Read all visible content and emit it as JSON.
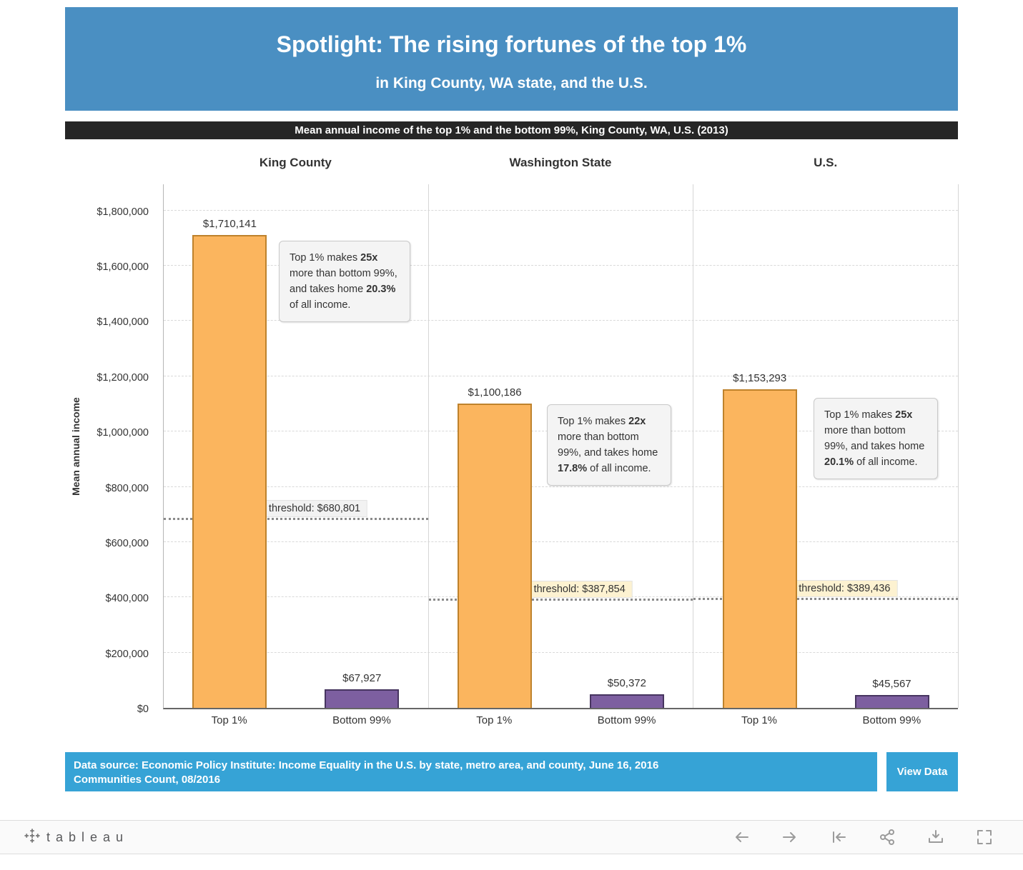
{
  "header": {
    "title": "Spotlight: The rising fortunes of the top 1%",
    "subtitle": "in King County, WA state, and the U.S."
  },
  "banner": {
    "text": "Mean annual income of the top 1% and the bottom 99%, King County, WA, U.S. (2013)"
  },
  "chart_data": {
    "type": "bar",
    "title": "Mean annual income of the top 1% and the bottom 99%, King County, WA, U.S. (2013)",
    "ylabel": "Mean annual income",
    "xlabel": "",
    "ylim": [
      0,
      1900000
    ],
    "grid": "dashed horizontal",
    "categories": [
      "Top 1%",
      "Bottom 99%"
    ],
    "y_ticks": [
      "$0",
      "$200,000",
      "$400,000",
      "$600,000",
      "$800,000",
      "$1,000,000",
      "$1,200,000",
      "$1,400,000",
      "$1,600,000",
      "$1,800,000"
    ],
    "y_tick_values": [
      0,
      200000,
      400000,
      600000,
      800000,
      1000000,
      1200000,
      1400000,
      1600000,
      1800000
    ],
    "colors": {
      "top1_fill": "#FBB55E",
      "top1_border": "#BE822C",
      "bottom99_fill": "#7D5FA0",
      "bottom99_border": "#473560",
      "header_blue": "#4a8fc2",
      "footer_blue": "#36a3d6"
    },
    "panels": [
      {
        "title": "King County",
        "values": [
          1710141,
          67927
        ],
        "value_labels": [
          "$1,710,141",
          "$67,927"
        ],
        "threshold": 680801,
        "threshold_label": "Top 1% threshold: $680,801",
        "threshold_label_bg": "#f2f2f2",
        "annotation": [
          "Top 1% makes ",
          "25x",
          " more than bottom 99%, and takes home ",
          "20.3%",
          "  of all income."
        ]
      },
      {
        "title": "Washington State",
        "values": [
          1100186,
          50372
        ],
        "value_labels": [
          "$1,100,186",
          "$50,372"
        ],
        "threshold": 387854,
        "threshold_label": "Top 1% threshold: $387,854",
        "threshold_label_bg": "#fdf2d1",
        "annotation": [
          "Top 1% makes ",
          "22x",
          " more than bottom 99%, and takes home ",
          "17.8%",
          "  of all income."
        ]
      },
      {
        "title": "U.S.",
        "values": [
          1153293,
          45567
        ],
        "value_labels": [
          "$1,153,293",
          "$45,567"
        ],
        "threshold": 389436,
        "threshold_label": "Top 1% threshold: $389,436",
        "threshold_label_bg": "#fdf2d1",
        "annotation": [
          "Top 1% makes ",
          "25x",
          " more than bottom 99%, and takes home ",
          "20.1%",
          "  of all income."
        ]
      }
    ]
  },
  "footer": {
    "source_line1": "Data source: Economic Policy Institute: Income Equality in the U.S. by state, metro area, and county, June 16, 2016",
    "source_line2": "Communities Count, 08/2016",
    "view_data_label": "View Data"
  },
  "toolbar": {
    "logo_text": "tableau",
    "icons": [
      "undo",
      "redo",
      "revert",
      "share",
      "download",
      "fullscreen"
    ]
  }
}
